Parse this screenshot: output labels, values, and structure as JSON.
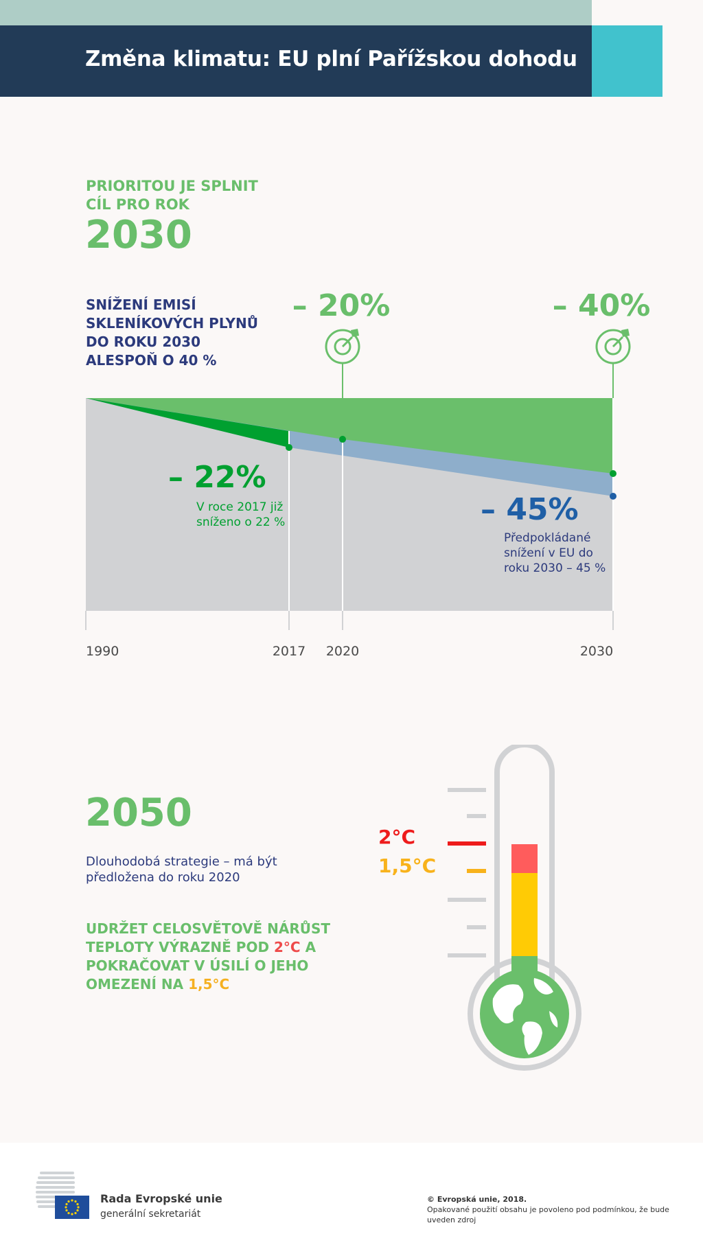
{
  "header": {
    "title": "Změna klimatu: EU plní Pařížskou dohodu"
  },
  "priority": {
    "line1": "PRIORITOU JE SPLNIT",
    "line2": "CÍL PRO ROK",
    "year": "2030"
  },
  "goal": {
    "line1": "SNÍŽENÍ EMISÍ",
    "line2": "SKLENÍKOVÝCH PLYNŮ",
    "line3": "DO ROKU 2030",
    "line4": "ALESPOŇ O 40 %"
  },
  "chart_data": {
    "type": "area",
    "x_ticks": [
      "1990",
      "2017",
      "2020",
      "2030"
    ],
    "targets": [
      {
        "year": 2020,
        "label": "– 20%",
        "value": -20
      },
      {
        "year": 2030,
        "label": "– 40%",
        "value": -40
      }
    ],
    "achieved": {
      "year": 2017,
      "label": "– 22%",
      "value": -22,
      "note_line1": "V roce 2017 již",
      "note_line2": "sníženo o 22 %"
    },
    "projected": {
      "year": 2030,
      "label": "– 45%",
      "value": -45,
      "note_line1": "Předpokládané",
      "note_line2": "snížení v EU do",
      "note_line3": "roku 2030 – 45 %"
    },
    "colors": {
      "target_area": "#6abf6b",
      "achieved": "#00a030",
      "projection": "#8eaecb",
      "baseline": "#d1d2d4",
      "navy": "#1f5fa6"
    }
  },
  "longterm": {
    "year": "2050",
    "strategy_line1": "Dlouhodobá strategie – má být",
    "strategy_line2": "předložena do roku 2020",
    "keep_line1": "UDRŽET CELOSVĚTOVĚ NÁRŮST",
    "keep_line2_a": "TEPLOTY VÝRAZNĚ POD ",
    "keep_line2_b": "2°C",
    "keep_line2_c": " A",
    "keep_line3": "POKRAČOVAT V ÚSILÍ O JEHO",
    "keep_line4_a": "OMEZENÍ NA ",
    "keep_line4_b": "1,5°C",
    "temp_2": "2°C",
    "temp_15": "1,5°C"
  },
  "footer": {
    "org_name": "Rada Evropské unie",
    "org_sub": "generální sekretariát",
    "copyright": "© Evropská unie, 2018.",
    "reuse_line1": "Opakované použití obsahu je povoleno pod podmínkou, že bude",
    "reuse_line2": "uveden zdroj"
  }
}
